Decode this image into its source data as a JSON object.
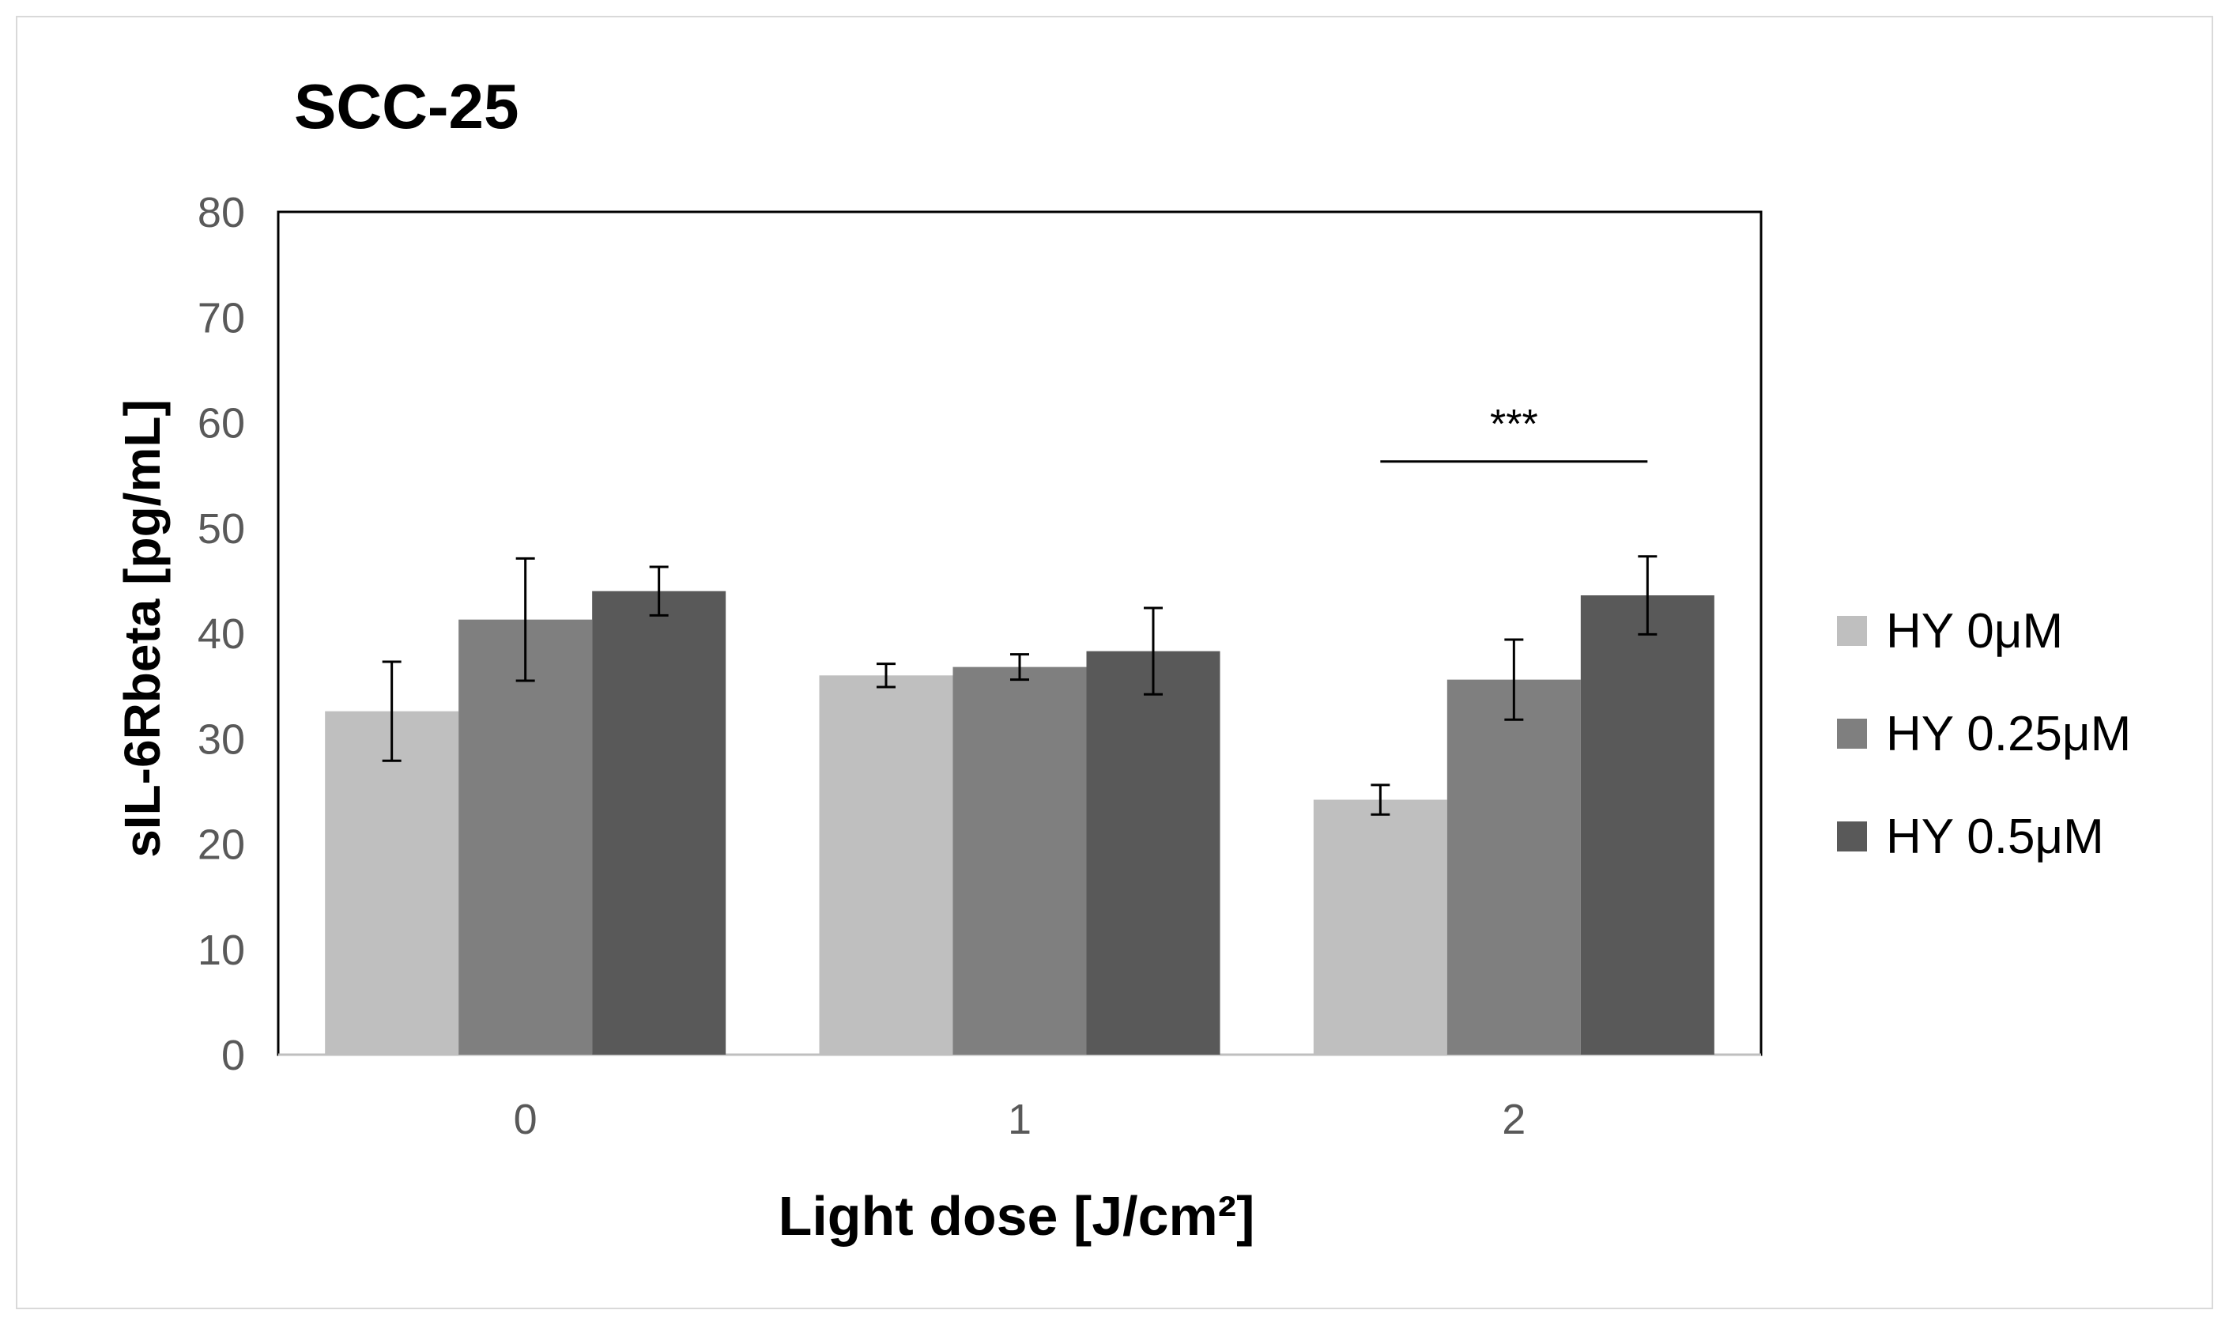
{
  "chart_data": {
    "type": "bar",
    "title": "SCC-25",
    "xlabel": "Light dose [J/cm²]",
    "ylabel": "sIL-6Rbeta [pg/mL]",
    "ylim": [
      0,
      80
    ],
    "yticks": [
      0,
      10,
      20,
      30,
      40,
      50,
      60,
      70,
      80
    ],
    "categories": [
      "0",
      "1",
      "2"
    ],
    "series": [
      {
        "name": "HY 0μM",
        "color": "#bfbfbf",
        "values": [
          32.6,
          36.0,
          24.2
        ],
        "errors": [
          4.7,
          1.1,
          1.4
        ]
      },
      {
        "name": "HY 0.25μM",
        "color": "#7f7f7f",
        "values": [
          41.3,
          36.8,
          35.6
        ],
        "errors": [
          5.8,
          1.2,
          3.8
        ]
      },
      {
        "name": "HY 0.5μM",
        "color": "#595959",
        "values": [
          44.0,
          38.3,
          43.6
        ],
        "errors": [
          2.3,
          4.1,
          3.7
        ]
      }
    ],
    "annotations": [
      {
        "text": "***",
        "category": "2",
        "from_series": 0,
        "to_series": 2,
        "y": 56.3
      }
    ],
    "legend_position": "right"
  }
}
